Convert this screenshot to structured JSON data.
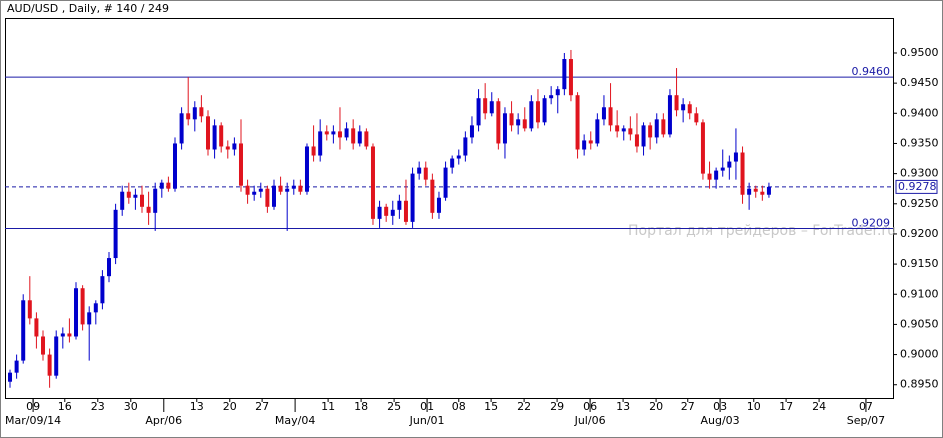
{
  "chart_data": {
    "type": "candlestick",
    "title": "AUD/USD , Daily, # 140 / 249",
    "watermark": "Портал для трейдеров – ForTrader.ru",
    "bull_color": "#0000cc",
    "bear_color": "#e0141e",
    "candles": [
      [
        0.8955,
        0.8975,
        0.8945,
        0.897
      ],
      [
        0.897,
        0.9,
        0.896,
        0.899
      ],
      [
        0.899,
        0.91,
        0.8985,
        0.909
      ],
      [
        0.909,
        0.913,
        0.905,
        0.906
      ],
      [
        0.906,
        0.907,
        0.901,
        0.903
      ],
      [
        0.903,
        0.904,
        0.899,
        0.9
      ],
      [
        0.9,
        0.901,
        0.8945,
        0.8965
      ],
      [
        0.8965,
        0.904,
        0.896,
        0.903
      ],
      [
        0.903,
        0.9045,
        0.901,
        0.9035
      ],
      [
        0.9035,
        0.906,
        0.902,
        0.903
      ],
      [
        0.903,
        0.912,
        0.9025,
        0.911
      ],
      [
        0.911,
        0.9115,
        0.904,
        0.905
      ],
      [
        0.905,
        0.908,
        0.899,
        0.907
      ],
      [
        0.907,
        0.909,
        0.905,
        0.9085
      ],
      [
        0.9085,
        0.914,
        0.9075,
        0.913
      ],
      [
        0.913,
        0.917,
        0.912,
        0.916
      ],
      [
        0.916,
        0.925,
        0.915,
        0.924
      ],
      [
        0.924,
        0.928,
        0.923,
        0.927
      ],
      [
        0.927,
        0.9285,
        0.925,
        0.926
      ],
      [
        0.926,
        0.9275,
        0.924,
        0.9265
      ],
      [
        0.9265,
        0.928,
        0.9235,
        0.9245
      ],
      [
        0.9245,
        0.927,
        0.9215,
        0.9235
      ],
      [
        0.9235,
        0.9285,
        0.9205,
        0.9275
      ],
      [
        0.9275,
        0.929,
        0.926,
        0.9285
      ],
      [
        0.9285,
        0.9295,
        0.927,
        0.9275
      ],
      [
        0.9275,
        0.936,
        0.927,
        0.935
      ],
      [
        0.935,
        0.941,
        0.934,
        0.94
      ],
      [
        0.94,
        0.946,
        0.938,
        0.939
      ],
      [
        0.939,
        0.942,
        0.937,
        0.941
      ],
      [
        0.941,
        0.943,
        0.9385,
        0.9395
      ],
      [
        0.9395,
        0.9405,
        0.933,
        0.934
      ],
      [
        0.934,
        0.939,
        0.9325,
        0.938
      ],
      [
        0.938,
        0.9385,
        0.9335,
        0.9345
      ],
      [
        0.9345,
        0.9355,
        0.9325,
        0.934
      ],
      [
        0.934,
        0.936,
        0.933,
        0.935
      ],
      [
        0.935,
        0.939,
        0.927,
        0.928
      ],
      [
        0.928,
        0.929,
        0.925,
        0.9265
      ],
      [
        0.9265,
        0.928,
        0.9255,
        0.927
      ],
      [
        0.927,
        0.9285,
        0.926,
        0.9275
      ],
      [
        0.9275,
        0.928,
        0.9235,
        0.9245
      ],
      [
        0.9245,
        0.929,
        0.924,
        0.928
      ],
      [
        0.928,
        0.9295,
        0.9265,
        0.927
      ],
      [
        0.927,
        0.9285,
        0.9205,
        0.9275
      ],
      [
        0.9275,
        0.929,
        0.9265,
        0.928
      ],
      [
        0.928,
        0.929,
        0.9265,
        0.927
      ],
      [
        0.927,
        0.935,
        0.9265,
        0.9345
      ],
      [
        0.9345,
        0.938,
        0.932,
        0.933
      ],
      [
        0.933,
        0.939,
        0.932,
        0.937
      ],
      [
        0.937,
        0.938,
        0.9355,
        0.9365
      ],
      [
        0.9365,
        0.938,
        0.935,
        0.937
      ],
      [
        0.937,
        0.941,
        0.934,
        0.936
      ],
      [
        0.936,
        0.9385,
        0.9355,
        0.9375
      ],
      [
        0.9375,
        0.939,
        0.934,
        0.935
      ],
      [
        0.935,
        0.938,
        0.9345,
        0.937
      ],
      [
        0.937,
        0.9375,
        0.934,
        0.9345
      ],
      [
        0.9345,
        0.935,
        0.9215,
        0.9225
      ],
      [
        0.9225,
        0.9255,
        0.921,
        0.9245
      ],
      [
        0.9245,
        0.925,
        0.922,
        0.923
      ],
      [
        0.923,
        0.9255,
        0.9215,
        0.924
      ],
      [
        0.924,
        0.9265,
        0.9225,
        0.9255
      ],
      [
        0.9255,
        0.929,
        0.9215,
        0.922
      ],
      [
        0.922,
        0.931,
        0.921,
        0.93
      ],
      [
        0.93,
        0.932,
        0.929,
        0.931
      ],
      [
        0.931,
        0.932,
        0.928,
        0.929
      ],
      [
        0.929,
        0.93,
        0.9225,
        0.9235
      ],
      [
        0.9235,
        0.927,
        0.9225,
        0.926
      ],
      [
        0.926,
        0.932,
        0.9255,
        0.931
      ],
      [
        0.931,
        0.933,
        0.93,
        0.9325
      ],
      [
        0.9325,
        0.934,
        0.9315,
        0.933
      ],
      [
        0.933,
        0.937,
        0.932,
        0.936
      ],
      [
        0.936,
        0.9395,
        0.935,
        0.938
      ],
      [
        0.938,
        0.944,
        0.937,
        0.9425
      ],
      [
        0.9425,
        0.945,
        0.939,
        0.94
      ],
      [
        0.94,
        0.9435,
        0.9395,
        0.942
      ],
      [
        0.942,
        0.9425,
        0.934,
        0.935
      ],
      [
        0.935,
        0.941,
        0.9325,
        0.94
      ],
      [
        0.94,
        0.942,
        0.937,
        0.938
      ],
      [
        0.938,
        0.94,
        0.9365,
        0.939
      ],
      [
        0.939,
        0.941,
        0.937,
        0.9375
      ],
      [
        0.9375,
        0.943,
        0.937,
        0.942
      ],
      [
        0.942,
        0.944,
        0.9375,
        0.9385
      ],
      [
        0.9385,
        0.943,
        0.938,
        0.9425
      ],
      [
        0.9425,
        0.9445,
        0.9415,
        0.943
      ],
      [
        0.943,
        0.9445,
        0.94,
        0.944
      ],
      [
        0.944,
        0.95,
        0.943,
        0.949
      ],
      [
        0.949,
        0.9505,
        0.942,
        0.943
      ],
      [
        0.943,
        0.9435,
        0.9325,
        0.934
      ],
      [
        0.934,
        0.9365,
        0.933,
        0.9355
      ],
      [
        0.9355,
        0.937,
        0.934,
        0.935
      ],
      [
        0.935,
        0.94,
        0.9345,
        0.939
      ],
      [
        0.939,
        0.943,
        0.938,
        0.941
      ],
      [
        0.941,
        0.945,
        0.937,
        0.938
      ],
      [
        0.938,
        0.9405,
        0.936,
        0.937
      ],
      [
        0.937,
        0.938,
        0.9355,
        0.9375
      ],
      [
        0.9375,
        0.9395,
        0.9355,
        0.9365
      ],
      [
        0.9365,
        0.94,
        0.9335,
        0.9345
      ],
      [
        0.9345,
        0.9385,
        0.933,
        0.938
      ],
      [
        0.938,
        0.9385,
        0.934,
        0.936
      ],
      [
        0.936,
        0.94,
        0.935,
        0.939
      ],
      [
        0.939,
        0.94,
        0.936,
        0.9365
      ],
      [
        0.9365,
        0.944,
        0.936,
        0.943
      ],
      [
        0.943,
        0.9475,
        0.9395,
        0.9405
      ],
      [
        0.9405,
        0.9425,
        0.9385,
        0.9415
      ],
      [
        0.9415,
        0.942,
        0.939,
        0.94
      ],
      [
        0.94,
        0.941,
        0.938,
        0.9385
      ],
      [
        0.9385,
        0.939,
        0.929,
        0.93
      ],
      [
        0.93,
        0.932,
        0.9275,
        0.929
      ],
      [
        0.929,
        0.931,
        0.9275,
        0.9305
      ],
      [
        0.9305,
        0.934,
        0.9295,
        0.931
      ],
      [
        0.931,
        0.933,
        0.929,
        0.932
      ],
      [
        0.932,
        0.9375,
        0.929,
        0.9335
      ],
      [
        0.9335,
        0.9345,
        0.925,
        0.9265
      ],
      [
        0.9265,
        0.9285,
        0.924,
        0.9275
      ],
      [
        0.9275,
        0.928,
        0.926,
        0.927
      ],
      [
        0.927,
        0.928,
        0.9255,
        0.9265
      ],
      [
        0.9265,
        0.9285,
        0.926,
        0.9278
      ]
    ],
    "xlim": [
      -0.76,
      133.8
    ],
    "ylim": [
      0.8928,
      0.9558
    ],
    "xticks": [
      {
        "value": 3.5,
        "label": "09"
      },
      {
        "value": 8.3,
        "label": "16"
      },
      {
        "value": 13.3,
        "label": "23"
      },
      {
        "value": 18.3,
        "label": "30"
      },
      {
        "value": 28.3,
        "label": "13"
      },
      {
        "value": 33.3,
        "label": "20"
      },
      {
        "value": 38.2,
        "label": "27"
      },
      {
        "value": 48.2,
        "label": "11"
      },
      {
        "value": 53.2,
        "label": "18"
      },
      {
        "value": 58.2,
        "label": "25"
      },
      {
        "value": 63.2,
        "label": "01"
      },
      {
        "value": 68,
        "label": "08"
      },
      {
        "value": 72.9,
        "label": "15"
      },
      {
        "value": 77.9,
        "label": "22"
      },
      {
        "value": 82.9,
        "label": "29"
      },
      {
        "value": 87.9,
        "label": "06"
      },
      {
        "value": 92.9,
        "label": "13"
      },
      {
        "value": 97.9,
        "label": "20"
      },
      {
        "value": 102.7,
        "label": "27"
      },
      {
        "value": 107.6,
        "label": "03"
      },
      {
        "value": 112.7,
        "label": "10"
      },
      {
        "value": 117.6,
        "label": "17"
      },
      {
        "value": 122.6,
        "label": "24"
      },
      {
        "value": 129.7,
        "label": "07"
      }
    ],
    "month_ticks": [
      {
        "value": 3.5,
        "label": "Mar/09/14"
      },
      {
        "value": 23.3,
        "label": "Apr/06"
      },
      {
        "value": 43.2,
        "label": "May/04"
      },
      {
        "value": 63.2,
        "label": "Jun/01"
      },
      {
        "value": 87.9,
        "label": "Jul/06"
      },
      {
        "value": 107.6,
        "label": "Aug/03"
      },
      {
        "value": 129.7,
        "label": "Sep/07"
      }
    ],
    "yticks": [
      {
        "value": 0.895,
        "label": "0.8950"
      },
      {
        "value": 0.9,
        "label": "0.9000"
      },
      {
        "value": 0.905,
        "label": "0.9050"
      },
      {
        "value": 0.91,
        "label": "0.9100"
      },
      {
        "value": 0.915,
        "label": "0.9150"
      },
      {
        "value": 0.92,
        "label": "0.9200"
      },
      {
        "value": 0.925,
        "label": "0.9250"
      },
      {
        "value": 0.93,
        "label": "0.9300"
      },
      {
        "value": 0.935,
        "label": "0.9350"
      },
      {
        "value": 0.94,
        "label": "0.9400"
      },
      {
        "value": 0.945,
        "label": "0.9450"
      },
      {
        "value": 0.95,
        "label": "0.9500"
      }
    ],
    "levels": [
      {
        "value": 0.946,
        "label": "0.9460",
        "style": "solid",
        "color": "#1a1aa6"
      },
      {
        "value": 0.9209,
        "label": "0.9209",
        "style": "solid",
        "color": "#1a1aa6"
      }
    ],
    "current_price": {
      "value": 0.9278,
      "label": "0.9278",
      "color": "#1a1aa6"
    }
  }
}
